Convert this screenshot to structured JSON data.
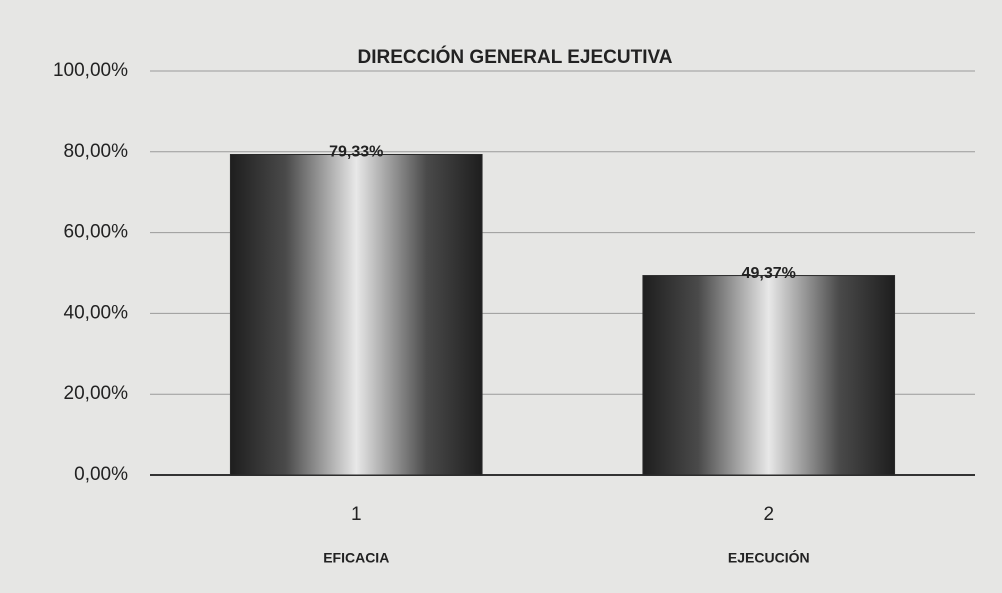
{
  "chart_data": {
    "type": "bar",
    "title": "DIRECCIÓN GENERAL EJECUTIVA",
    "categories": [
      "1",
      "2"
    ],
    "category_descriptions": [
      "EFICACIA",
      "EJECUCIÓN"
    ],
    "values": [
      79.33,
      49.37
    ],
    "value_labels": [
      "79,33%",
      "49,37%"
    ],
    "color": "#2a2a2a",
    "ylim": [
      0,
      100
    ],
    "yticks": [
      {
        "value": 0,
        "label": "0,00%"
      },
      {
        "value": 20,
        "label": "20,00%"
      },
      {
        "value": 40,
        "label": "40,00%"
      },
      {
        "value": 60,
        "label": "60,00%"
      },
      {
        "value": 80,
        "label": "80,00%"
      },
      {
        "value": 100,
        "label": "100,00%"
      }
    ],
    "grid": true
  }
}
